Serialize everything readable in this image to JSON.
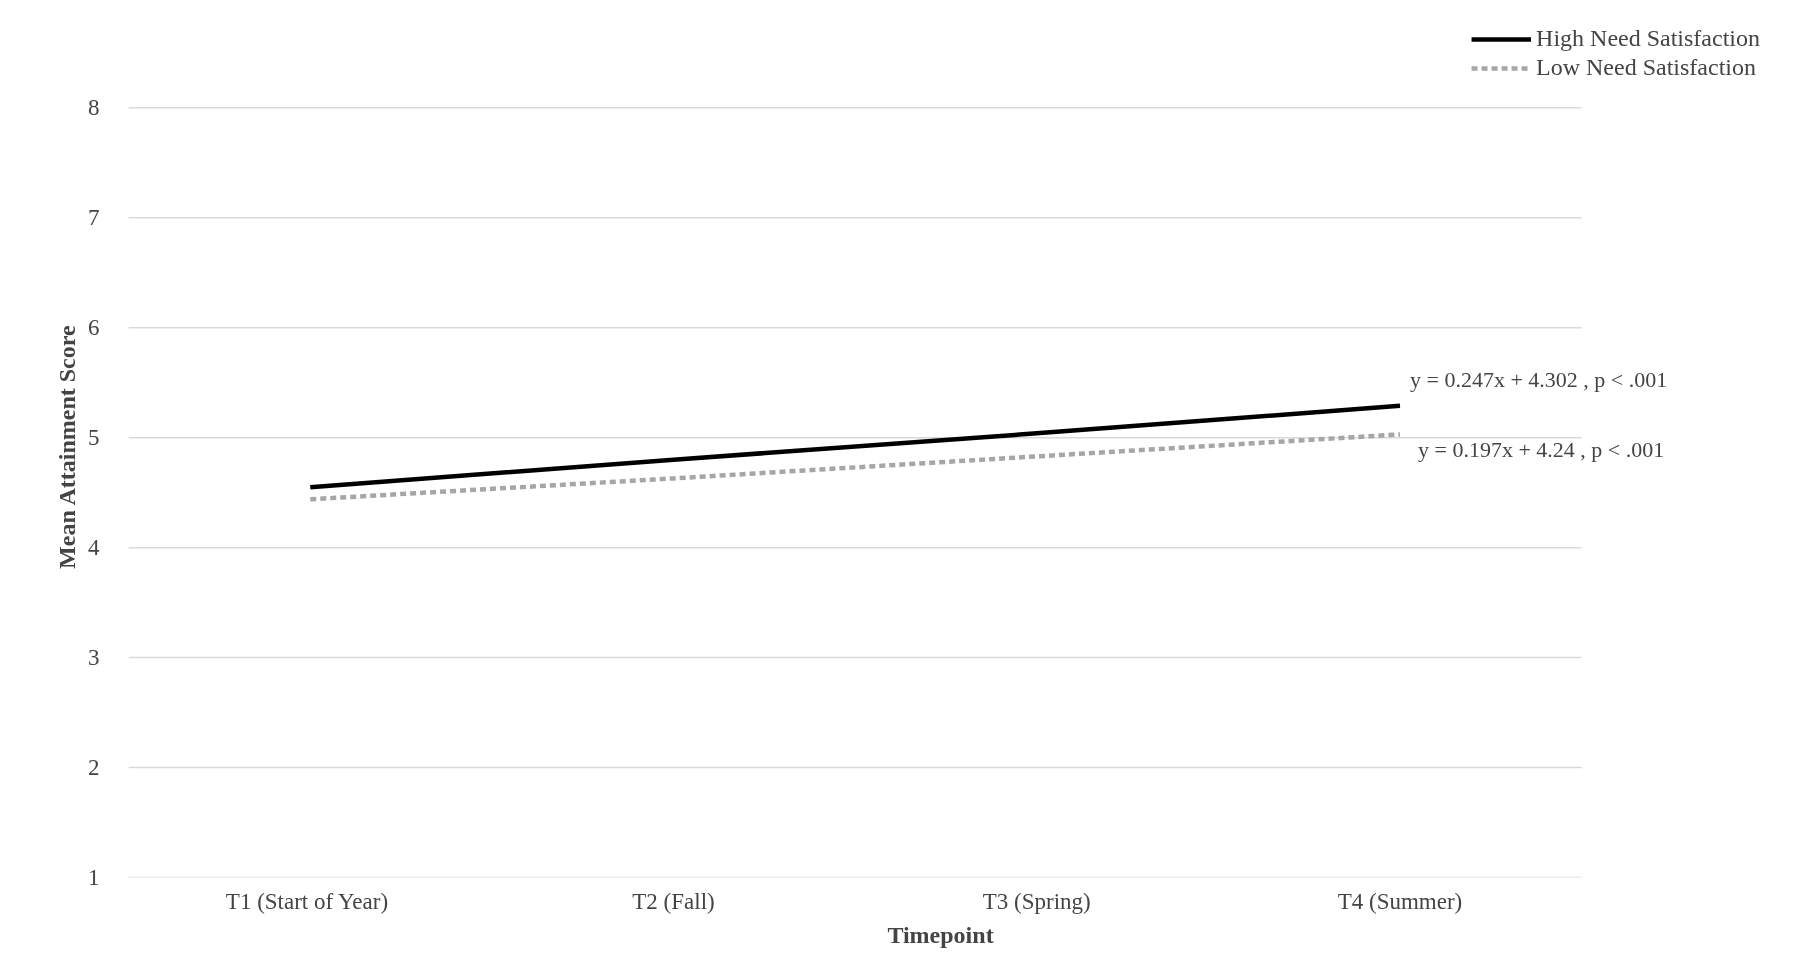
{
  "chart_data": {
    "type": "line",
    "xlabel": "Timepoint",
    "ylabel": "Mean Attainment Score",
    "categories": [
      "T1 (Start of  Year)",
      "T2 (Fall)",
      "T3 (Spring)",
      "T4 (Summer)"
    ],
    "series": [
      {
        "name": "High Need Satisfaction",
        "color": "#000000",
        "line_style": "solid",
        "values": [
          4.55,
          4.8,
          5.04,
          5.29
        ]
      },
      {
        "name": "Low Need Satisfaction",
        "color": "#a6a6a6",
        "line_style": "dashed",
        "values": [
          4.44,
          4.63,
          4.83,
          5.03
        ]
      }
    ],
    "annotations": [
      {
        "text": "y = 0.247x + 4.302 , p < .001",
        "x": "T4 (Summer)",
        "y": 5.29
      },
      {
        "text": "y = 0.197x + 4.24  , p < .001",
        "x": "T4 (Summer)",
        "y": 5.03
      }
    ],
    "ylim": [
      1,
      8
    ],
    "yticks": [
      1,
      2,
      3,
      4,
      5,
      6,
      7,
      8
    ],
    "grid": "y",
    "legend": "top right",
    "marker": "none"
  }
}
